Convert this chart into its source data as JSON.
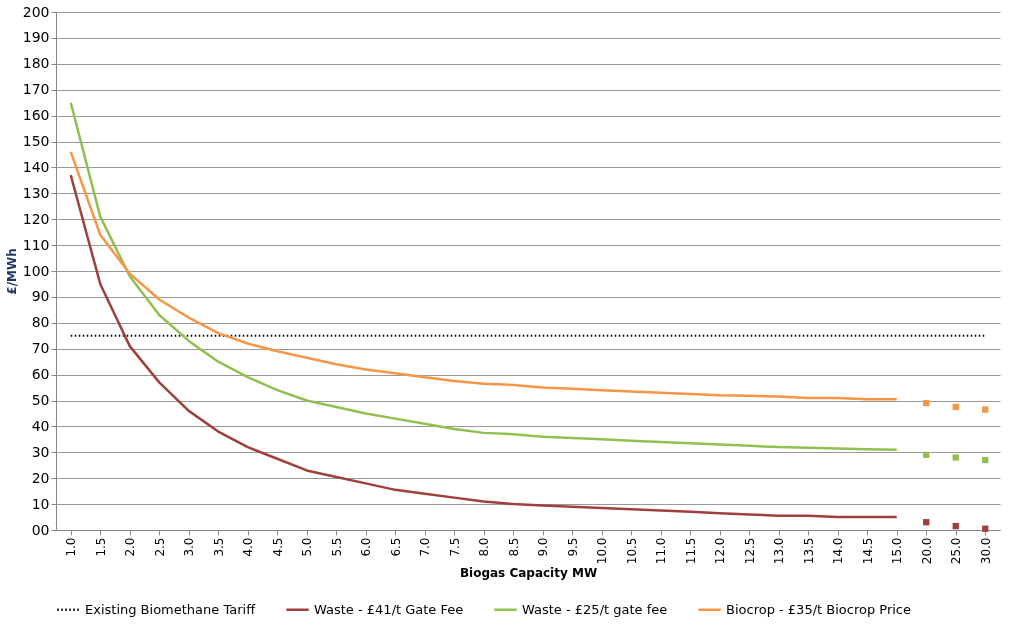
{
  "chart_data": {
    "type": "line",
    "xlabel": "Biogas Capacity MW",
    "ylabel": "£/MWh",
    "categories": [
      "1.0",
      "1.5",
      "2.0",
      "2.5",
      "3.0",
      "3.5",
      "4.0",
      "4.5",
      "5.0",
      "5.5",
      "6.0",
      "6.5",
      "7.0",
      "7.5",
      "8.0",
      "8.5",
      "9.0",
      "9.5",
      "10.0",
      "10.5",
      "11.0",
      "11.5",
      "12.0",
      "12.5",
      "13.0",
      "13.5",
      "14.0",
      "14.5",
      "15.0",
      "20.0",
      "25.0",
      "30.0"
    ],
    "series": [
      {
        "name": "Waste - £41/t Gate Fee",
        "color": "#a0403c",
        "values": [
          137,
          95,
          71,
          57,
          46,
          38,
          32,
          27.5,
          23,
          20.5,
          18,
          15.5,
          14,
          12.5,
          11,
          10,
          9.5,
          9,
          8.5,
          8,
          7.5,
          7,
          6.5,
          6,
          5.5,
          5.5,
          5,
          5,
          5,
          null,
          null,
          null
        ]
      },
      {
        "name": "Waste - £25/t gate fee",
        "color": "#92c050",
        "values": [
          165,
          121,
          98,
          83,
          73,
          65,
          59,
          54,
          50,
          47.5,
          45,
          43,
          41,
          39,
          37.5,
          37,
          36,
          35.5,
          35,
          34.5,
          34,
          33.5,
          33,
          32.5,
          32,
          31.8,
          31.5,
          31.2,
          31,
          null,
          null,
          null
        ]
      },
      {
        "name": "Biocrop - £35/t Biocrop Price",
        "color": "#f79646",
        "values": [
          146,
          114,
          99,
          89,
          82,
          76,
          72,
          69,
          66.5,
          64,
          62,
          60.5,
          59,
          57.5,
          56.5,
          56,
          55,
          54.5,
          54,
          53.5,
          53,
          52.5,
          52,
          51.8,
          51.5,
          51,
          51,
          50.5,
          50.5,
          null,
          null,
          null
        ]
      },
      {
        "type": "scatter",
        "marker": "square",
        "color": "#a0403c",
        "x": [
          "20.0",
          "25.0",
          "30.0"
        ],
        "values": [
          3,
          1.5,
          0.5
        ]
      },
      {
        "type": "scatter",
        "marker": "square",
        "color": "#92c050",
        "x": [
          "20.0",
          "25.0",
          "30.0"
        ],
        "values": [
          29,
          28,
          27
        ]
      },
      {
        "type": "scatter",
        "marker": "square",
        "color": "#f79646",
        "x": [
          "20.0",
          "25.0",
          "30.0"
        ],
        "values": [
          49,
          47.5,
          46.5
        ]
      }
    ],
    "ref_lines": [
      {
        "axis": "y",
        "value": 75,
        "label": "Existing Biomethane Tariff",
        "color": "#000000",
        "line_style": "dotted"
      }
    ],
    "ylim": [
      0,
      200
    ],
    "yticks": [
      {
        "value": 0,
        "label": "00"
      },
      10,
      20,
      30,
      40,
      50,
      60,
      70,
      80,
      90,
      100,
      110,
      120,
      130,
      140,
      150,
      160,
      170,
      180,
      190,
      200
    ],
    "grid": "y",
    "legend": "bottom",
    "marker": "none",
    "line_style": "solid"
  }
}
